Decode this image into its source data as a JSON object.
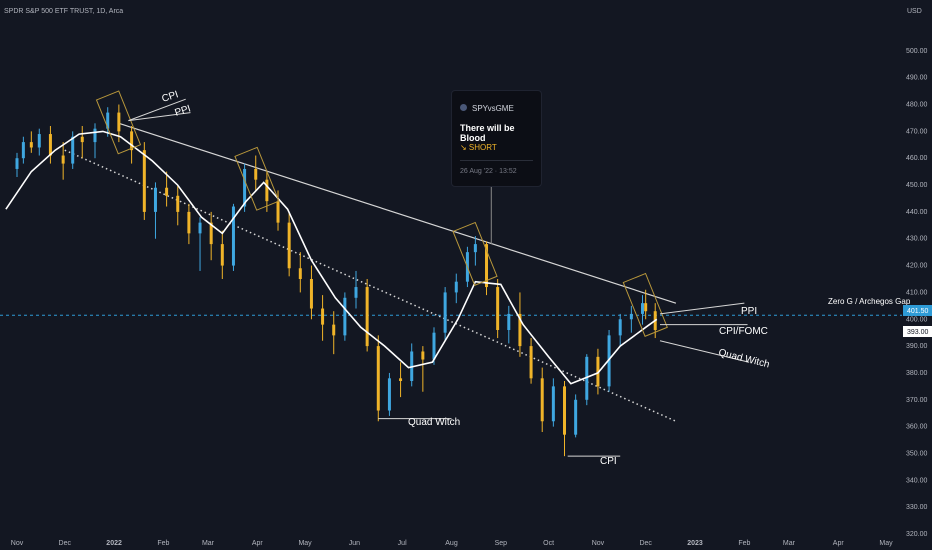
{
  "header": {
    "symbol_title": "SPDR S&P 500 ETF TRUST, 1D, Arca",
    "currency": "USD"
  },
  "idea_card": {
    "author": "SPYvsGME",
    "title": "There will be Blood",
    "signal": "↘ SHORT",
    "date": "26 Aug '22 · 13:52"
  },
  "colors": {
    "background": "#131722",
    "bull_candle": "#3fa7e0",
    "bear_candle": "#f0b429",
    "moving_average": "#ffffff",
    "trendline": "#d6d6d6",
    "gap_line": "#2e9bd6",
    "box": "#b8973b"
  },
  "price_labels": {
    "gap_price": "401.50",
    "current_price": "393.00"
  },
  "annotations": {
    "cpi_top": "CPI",
    "ppi_top": "PPI",
    "quad_witch_june": "Quad Witch",
    "cpi_oct": "CPI",
    "ppi_dec": "PPI",
    "cpi_fomc_dec": "CPI/FOMC",
    "quad_witch_dec": "Quad Witch",
    "zero_g": "Zero G / Archegos Gap"
  },
  "chart_data": {
    "type": "candlestick",
    "title": "SPDR S&P 500 ETF TRUST, 1D, Arca",
    "ylabel": "USD",
    "ylim": [
      320,
      510
    ],
    "x_tick_labels": [
      "Nov",
      "Dec",
      "2022",
      "Feb",
      "Mar",
      "Apr",
      "May",
      "Jun",
      "Jul",
      "Aug",
      "Sep",
      "Oct",
      "Nov",
      "Dec",
      "2023",
      "Feb",
      "Mar",
      "Apr",
      "May"
    ],
    "y_tick_labels": [
      "500.00",
      "490.00",
      "480.00",
      "470.00",
      "460.00",
      "450.00",
      "440.00",
      "430.00",
      "420.00",
      "410.00",
      "400.00",
      "390.00",
      "380.00",
      "370.00",
      "360.00",
      "350.00",
      "340.00",
      "330.00",
      "320.00"
    ],
    "series": [
      {
        "type": "line",
        "x": [
          "2021-10-25",
          "2021-11-10",
          "2021-11-25",
          "2021-12-10",
          "2021-12-25",
          "2022-01-05",
          "2022-01-25",
          "2022-02-10",
          "2022-02-25",
          "2022-03-10",
          "2022-03-25",
          "2022-04-05",
          "2022-04-20",
          "2022-05-05",
          "2022-05-20",
          "2022-06-05",
          "2022-06-20",
          "2022-07-05",
          "2022-07-20",
          "2022-08-05",
          "2022-08-16",
          "2022-09-01",
          "2022-09-15",
          "2022-10-01",
          "2022-10-15",
          "2022-11-01",
          "2022-11-15",
          "2022-12-01",
          "2022-12-08"
        ],
        "values": [
          441,
          455,
          463,
          469,
          470,
          468,
          459,
          450,
          438,
          432,
          444,
          451,
          441,
          422,
          408,
          397,
          390,
          382,
          384,
          400,
          414,
          413,
          398,
          386,
          376,
          380,
          390,
          397,
          400
        ]
      },
      {
        "type": "trendline",
        "points": [
          {
            "x": "2022-01-04",
            "y": 473
          },
          {
            "x": "2022-12-20",
            "y": 406
          }
        ]
      },
      {
        "type": "trendline",
        "points": [
          {
            "x": "2021-12-01",
            "y": 463
          },
          {
            "x": "2022-12-20",
            "y": 362
          }
        ]
      },
      {
        "type": "candlestick",
        "x": [
          "2021-11-01",
          "2021-11-05",
          "2021-11-10",
          "2021-11-15",
          "2021-11-22",
          "2021-11-30",
          "2021-12-06",
          "2021-12-12",
          "2021-12-20",
          "2021-12-28",
          "2022-01-04",
          "2022-01-12",
          "2022-01-20",
          "2022-01-27",
          "2022-02-03",
          "2022-02-10",
          "2022-02-17",
          "2022-02-24",
          "2022-03-03",
          "2022-03-10",
          "2022-03-17",
          "2022-03-24",
          "2022-03-31",
          "2022-04-07",
          "2022-04-14",
          "2022-04-21",
          "2022-04-28",
          "2022-05-05",
          "2022-05-12",
          "2022-05-19",
          "2022-05-26",
          "2022-06-02",
          "2022-06-09",
          "2022-06-16",
          "2022-06-23",
          "2022-06-30",
          "2022-07-07",
          "2022-07-14",
          "2022-07-21",
          "2022-07-28",
          "2022-08-04",
          "2022-08-11",
          "2022-08-16",
          "2022-08-23",
          "2022-08-30",
          "2022-09-06",
          "2022-09-13",
          "2022-09-20",
          "2022-09-27",
          "2022-10-04",
          "2022-10-11",
          "2022-10-18",
          "2022-10-25",
          "2022-11-01",
          "2022-11-08",
          "2022-11-15",
          "2022-11-22",
          "2022-11-29",
          "2022-12-01",
          "2022-12-07"
        ],
        "values": [
          [
            456,
            462,
            453,
            460
          ],
          [
            460,
            468,
            458,
            466
          ],
          [
            466,
            470,
            462,
            464
          ],
          [
            464,
            471,
            461,
            469
          ],
          [
            469,
            472,
            458,
            461
          ],
          [
            461,
            466,
            452,
            458
          ],
          [
            458,
            470,
            456,
            468
          ],
          [
            468,
            472,
            460,
            466
          ],
          [
            466,
            473,
            460,
            471
          ],
          [
            471,
            479,
            468,
            477
          ],
          [
            477,
            480,
            466,
            470
          ],
          [
            470,
            472,
            458,
            463
          ],
          [
            463,
            466,
            437,
            440
          ],
          [
            440,
            451,
            430,
            449
          ],
          [
            449,
            455,
            442,
            446
          ],
          [
            446,
            450,
            435,
            440
          ],
          [
            440,
            443,
            428,
            432
          ],
          [
            432,
            438,
            418,
            436
          ],
          [
            436,
            440,
            422,
            428
          ],
          [
            428,
            433,
            415,
            420
          ],
          [
            420,
            443,
            418,
            442
          ],
          [
            442,
            458,
            440,
            456
          ],
          [
            456,
            461,
            448,
            452
          ],
          [
            452,
            455,
            440,
            444
          ],
          [
            444,
            448,
            433,
            436
          ],
          [
            436,
            440,
            416,
            419
          ],
          [
            419,
            425,
            410,
            415
          ],
          [
            415,
            420,
            400,
            404
          ],
          [
            404,
            409,
            392,
            398
          ],
          [
            398,
            403,
            387,
            394
          ],
          [
            394,
            410,
            392,
            408
          ],
          [
            408,
            418,
            404,
            412
          ],
          [
            412,
            415,
            388,
            390
          ],
          [
            390,
            394,
            362,
            366
          ],
          [
            366,
            380,
            364,
            378
          ],
          [
            378,
            384,
            371,
            377
          ],
          [
            377,
            391,
            375,
            388
          ],
          [
            388,
            390,
            373,
            385
          ],
          [
            385,
            397,
            383,
            395
          ],
          [
            395,
            412,
            392,
            410
          ],
          [
            410,
            417,
            406,
            414
          ],
          [
            414,
            427,
            412,
            425
          ],
          [
            425,
            431,
            420,
            428
          ],
          [
            428,
            429,
            409,
            412
          ],
          [
            412,
            415,
            393,
            396
          ],
          [
            396,
            405,
            391,
            402
          ],
          [
            402,
            410,
            386,
            390
          ],
          [
            390,
            393,
            376,
            378
          ],
          [
            378,
            382,
            358,
            362
          ],
          [
            362,
            378,
            360,
            375
          ],
          [
            375,
            377,
            349,
            357
          ],
          [
            357,
            372,
            356,
            370
          ],
          [
            370,
            387,
            368,
            386
          ],
          [
            386,
            389,
            372,
            375
          ],
          [
            375,
            396,
            373,
            394
          ],
          [
            394,
            402,
            390,
            400
          ],
          [
            400,
            405,
            395,
            402
          ],
          [
            402,
            409,
            398,
            406
          ],
          [
            406,
            411,
            400,
            403
          ],
          [
            403,
            406,
            393,
            396
          ]
        ]
      }
    ],
    "horizontal_line": {
      "y": 401.5,
      "label": "Zero G / Archegos Gap"
    },
    "grid": false,
    "legend": "none"
  }
}
